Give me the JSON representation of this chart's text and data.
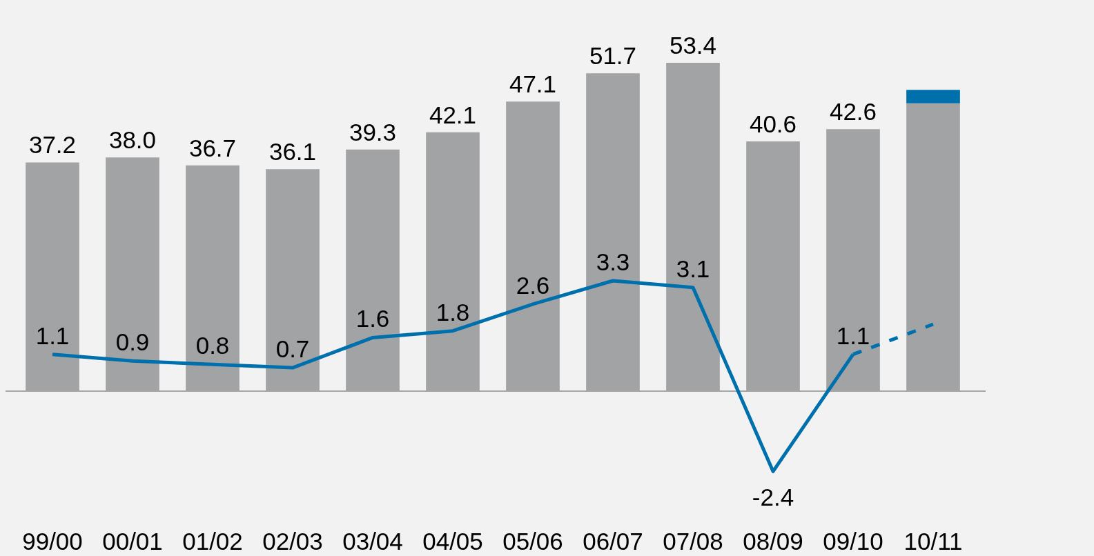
{
  "chart_data": {
    "type": "bar",
    "stacked": true,
    "tick_labels": "x",
    "grid": false,
    "legend": false,
    "marker": "none",
    "categories": [
      "99/00",
      "00/01",
      "01/02",
      "02/03",
      "03/04",
      "04/05",
      "05/06",
      "06/07",
      "07/08",
      "08/09",
      "09/10",
      "10/11"
    ],
    "series": [
      {
        "color": "#a2a3a5",
        "values": [
          37.2,
          38.0,
          36.7,
          36.1,
          39.3,
          42.1,
          47.1,
          51.7,
          53.4,
          40.6,
          42.6,
          46.8
        ],
        "value_labels": [
          "37.2",
          "38.0",
          "36.7",
          "36.1",
          "39.3",
          "42.1",
          "47.1",
          "51.7",
          "53.4",
          "40.6",
          "42.6",
          null
        ]
      },
      {
        "color": "#0070ad",
        "values": [
          null,
          null,
          null,
          null,
          null,
          null,
          null,
          null,
          null,
          null,
          null,
          2.2
        ]
      },
      {
        "type": "line",
        "axis": "y2",
        "color": "#0070ad",
        "line_style": "solid",
        "values": [
          1.1,
          0.9,
          0.8,
          0.7,
          1.6,
          1.8,
          2.6,
          3.3,
          3.1,
          -2.4,
          1.1,
          null
        ],
        "value_labels": [
          "1.1",
          "0.9",
          "0.8",
          "0.7",
          "1.6",
          "1.8",
          "2.6",
          "3.3",
          "3.1",
          "-2.4",
          "1.1",
          null
        ]
      },
      {
        "type": "line",
        "axis": "y2",
        "color": "#0070ad",
        "line_style": "dashed",
        "values": [
          null,
          null,
          null,
          null,
          null,
          null,
          null,
          null,
          null,
          null,
          1.1,
          2.0
        ]
      }
    ],
    "ref_lines": [
      {
        "axis": "y",
        "value": 0,
        "color": "#a6a6a6"
      }
    ]
  }
}
